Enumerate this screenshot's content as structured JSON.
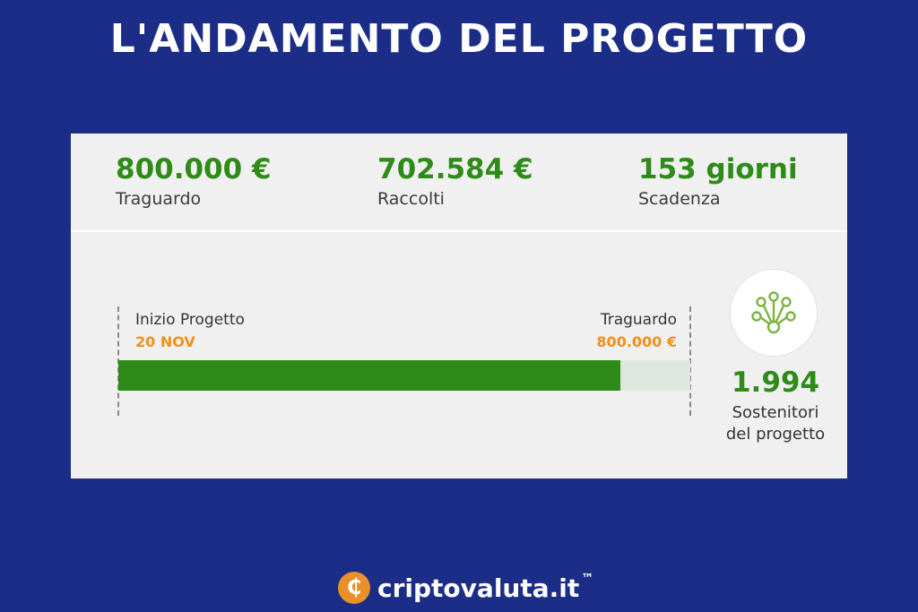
{
  "title": "L'ANDAMENTO DEL PROGETTO",
  "stats": [
    {
      "value": "800.000 €",
      "label": "Traguardo"
    },
    {
      "value": "702.584 €",
      "label": "Raccolti"
    },
    {
      "value": "153 giorni",
      "label": "Scadenza"
    }
  ],
  "progress": {
    "start_label": "Inizio Progetto",
    "start_value": "20 NOV",
    "end_label": "Traguardo",
    "end_value": "800.000 €",
    "fraction": 0.878
  },
  "backers": {
    "value": "1.994",
    "label_line1": "Sostenitori",
    "label_line2": "del progetto",
    "icon": "network-nodes-icon"
  },
  "brand": {
    "coin_symbol": "₵",
    "name": "criptovaluta.it",
    "tm": "™"
  },
  "colors": {
    "background": "#1b2d86",
    "green": "#2e8b17",
    "orange": "#f0911a",
    "card": "#f0f0f0"
  }
}
